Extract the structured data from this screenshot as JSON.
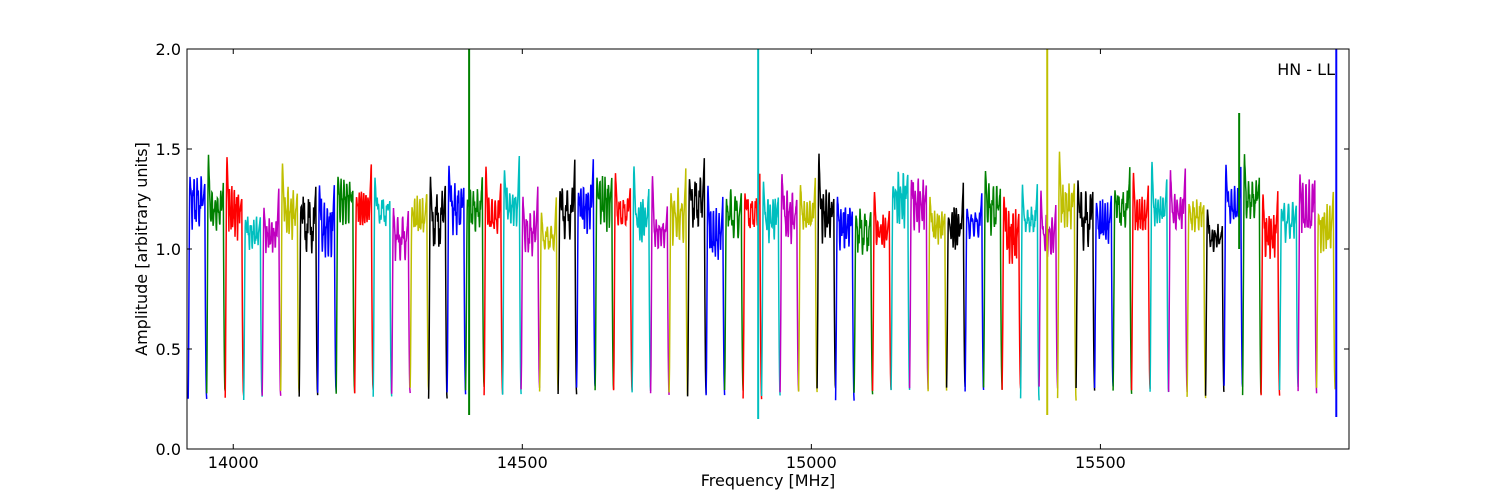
{
  "chart_data": {
    "type": "line",
    "title": "",
    "annotation": "HN - LL",
    "xlabel": "Frequency [MHz]",
    "ylabel": "Amplitude [arbitrary units]",
    "xlim": [
      13920,
      15930
    ],
    "ylim": [
      0.0,
      2.0
    ],
    "x_ticks": [
      14000,
      14500,
      15000,
      15500
    ],
    "x_tick_labels": [
      "14000",
      "14500",
      "15000",
      "15500"
    ],
    "y_ticks": [
      0.0,
      0.5,
      1.0,
      1.5,
      2.0
    ],
    "y_tick_labels": [
      "0.0",
      "0.5",
      "1.0",
      "1.5",
      "2.0"
    ],
    "grid": false,
    "legend": "none",
    "color_cycle": [
      "#0000ff",
      "#008000",
      "#ff0000",
      "#00bfbf",
      "#bf00bf",
      "#bfbf00",
      "#000000"
    ],
    "subband_width_mhz": 32,
    "subband_count": 62,
    "subband_start_mhz": 13922,
    "typical_subband_shape": {
      "edge_minimum": 0.28,
      "passband_level": [
        1.05,
        1.35
      ],
      "edge_peak_max": 1.55
    },
    "spikes": [
      {
        "x": 14408,
        "y_top": 2.0,
        "y_bottom": 0.17,
        "color": "#008000"
      },
      {
        "x": 14908,
        "y_top": 2.0,
        "y_bottom": 0.15,
        "color": "#00bfbf"
      },
      {
        "x": 15408,
        "y_top": 2.0,
        "y_bottom": 0.17,
        "color": "#bfbf00"
      },
      {
        "x": 15740,
        "y_top": 1.68,
        "y_bottom": 1.0,
        "color": "#008000"
      },
      {
        "x": 15908,
        "y_top": 2.0,
        "y_bottom": 0.16,
        "color": "#0000ff"
      }
    ]
  }
}
